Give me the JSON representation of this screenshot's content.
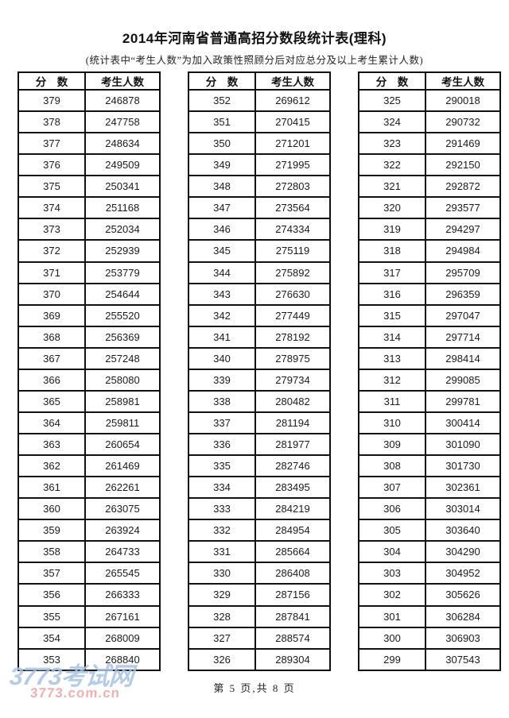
{
  "page": {
    "title": "2014年河南省普通高招分数段统计表(理科)",
    "subtitle": "(统计表中“考生人数”为加入政策性照顾分后对应总分及以上考生累计人数)",
    "footer_page_text": "第 5 页,共 8 页"
  },
  "column_headers": {
    "score": "分　数",
    "count": "考生人数"
  },
  "tables": [
    {
      "rows": [
        [
          "379",
          "246878"
        ],
        [
          "378",
          "247758"
        ],
        [
          "377",
          "248634"
        ],
        [
          "376",
          "249509"
        ],
        [
          "375",
          "250341"
        ],
        [
          "374",
          "251168"
        ],
        [
          "373",
          "252034"
        ],
        [
          "372",
          "252939"
        ],
        [
          "371",
          "253779"
        ],
        [
          "370",
          "254644"
        ],
        [
          "369",
          "255520"
        ],
        [
          "368",
          "256369"
        ],
        [
          "367",
          "257248"
        ],
        [
          "366",
          "258080"
        ],
        [
          "365",
          "258981"
        ],
        [
          "364",
          "259811"
        ],
        [
          "363",
          "260654"
        ],
        [
          "362",
          "261469"
        ],
        [
          "361",
          "262261"
        ],
        [
          "360",
          "263075"
        ],
        [
          "359",
          "263924"
        ],
        [
          "358",
          "264733"
        ],
        [
          "357",
          "265545"
        ],
        [
          "356",
          "266333"
        ],
        [
          "355",
          "267161"
        ],
        [
          "354",
          "268009"
        ],
        [
          "353",
          "268840"
        ]
      ]
    },
    {
      "rows": [
        [
          "352",
          "269612"
        ],
        [
          "351",
          "270415"
        ],
        [
          "350",
          "271201"
        ],
        [
          "349",
          "271995"
        ],
        [
          "348",
          "272803"
        ],
        [
          "347",
          "273564"
        ],
        [
          "346",
          "274334"
        ],
        [
          "345",
          "275119"
        ],
        [
          "344",
          "275892"
        ],
        [
          "343",
          "276630"
        ],
        [
          "342",
          "277449"
        ],
        [
          "341",
          "278192"
        ],
        [
          "340",
          "278975"
        ],
        [
          "339",
          "279734"
        ],
        [
          "338",
          "280482"
        ],
        [
          "337",
          "281194"
        ],
        [
          "336",
          "281977"
        ],
        [
          "335",
          "282746"
        ],
        [
          "334",
          "283495"
        ],
        [
          "333",
          "284219"
        ],
        [
          "332",
          "284954"
        ],
        [
          "331",
          "285664"
        ],
        [
          "330",
          "286408"
        ],
        [
          "329",
          "287156"
        ],
        [
          "328",
          "287841"
        ],
        [
          "327",
          "288574"
        ],
        [
          "326",
          "289304"
        ]
      ]
    },
    {
      "rows": [
        [
          "325",
          "290018"
        ],
        [
          "324",
          "290732"
        ],
        [
          "323",
          "291469"
        ],
        [
          "322",
          "292150"
        ],
        [
          "321",
          "292872"
        ],
        [
          "320",
          "293577"
        ],
        [
          "319",
          "294297"
        ],
        [
          "318",
          "294984"
        ],
        [
          "317",
          "295709"
        ],
        [
          "316",
          "296359"
        ],
        [
          "315",
          "297047"
        ],
        [
          "314",
          "297714"
        ],
        [
          "313",
          "298414"
        ],
        [
          "312",
          "299085"
        ],
        [
          "311",
          "299781"
        ],
        [
          "310",
          "300414"
        ],
        [
          "309",
          "301090"
        ],
        [
          "308",
          "301730"
        ],
        [
          "307",
          "302361"
        ],
        [
          "306",
          "303014"
        ],
        [
          "305",
          "303640"
        ],
        [
          "304",
          "304290"
        ],
        [
          "303",
          "304952"
        ],
        [
          "302",
          "305626"
        ],
        [
          "301",
          "306284"
        ],
        [
          "300",
          "306903"
        ],
        [
          "299",
          "307543"
        ]
      ]
    }
  ],
  "watermark": {
    "site_name": "3773考试网",
    "site_url": "3773.com.cn",
    "name_color": "#a9c4e6",
    "url_color": "#f0a2a2"
  }
}
